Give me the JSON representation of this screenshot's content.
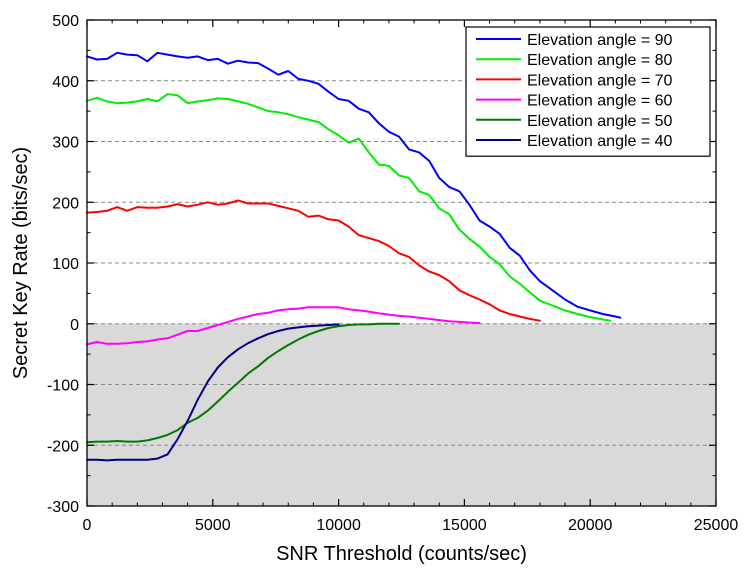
{
  "chart_data": {
    "type": "line",
    "title": "",
    "xlabel": "SNR Threshold (counts/sec)",
    "ylabel": "Secret Key Rate (bits/sec)",
    "xlim": [
      0,
      25000
    ],
    "ylim": [
      -300,
      500
    ],
    "xticks": [
      0,
      5000,
      10000,
      15000,
      20000,
      25000
    ],
    "yticks": [
      -300,
      -200,
      -100,
      0,
      100,
      200,
      300,
      400,
      500
    ],
    "xtick_labels": [
      "0",
      "5000",
      "10000",
      "15000",
      "20000",
      "25000"
    ],
    "ytick_labels": [
      "-300",
      "-200",
      "-100",
      "0",
      "100",
      "200",
      "300",
      "400",
      "500"
    ],
    "grid": "horizontal dashed",
    "negative_region_shaded": true,
    "shade_color": "#d9d9d9",
    "legend_position": "top-right",
    "series": [
      {
        "name": "Elevation angle = 90",
        "color": "#0000ff",
        "x": [
          0,
          400,
          800,
          1200,
          1600,
          2000,
          2400,
          2800,
          3200,
          3600,
          4000,
          4400,
          4800,
          5200,
          5600,
          6000,
          6400,
          6800,
          7200,
          7600,
          8000,
          8400,
          8800,
          9200,
          9600,
          10000,
          10400,
          10800,
          11200,
          11600,
          12000,
          12400,
          12800,
          13200,
          13600,
          14000,
          14400,
          14800,
          15200,
          15600,
          16000,
          16400,
          16800,
          17200,
          17600,
          18000,
          18500,
          19000,
          19500,
          20000,
          20500,
          21000,
          21200
        ],
        "y": [
          440,
          435,
          436,
          446,
          443,
          442,
          432,
          446,
          443,
          440,
          438,
          440,
          434,
          436,
          428,
          433,
          430,
          429,
          420,
          410,
          416,
          403,
          400,
          395,
          382,
          370,
          367,
          354,
          348,
          330,
          316,
          308,
          287,
          282,
          268,
          240,
          225,
          218,
          196,
          170,
          160,
          148,
          125,
          112,
          88,
          70,
          55,
          40,
          28,
          22,
          16,
          12,
          10
        ]
      },
      {
        "name": "Elevation angle = 80",
        "color": "#00ee00",
        "x": [
          0,
          400,
          800,
          1200,
          1600,
          2000,
          2400,
          2800,
          3200,
          3600,
          4000,
          4400,
          4800,
          5200,
          5600,
          6000,
          6400,
          6800,
          7200,
          7600,
          8000,
          8400,
          8800,
          9200,
          9600,
          10000,
          10400,
          10800,
          11200,
          11600,
          12000,
          12400,
          12800,
          13200,
          13600,
          14000,
          14400,
          14800,
          15200,
          15600,
          16000,
          16400,
          16800,
          17200,
          17600,
          18000,
          18500,
          19000,
          19500,
          20000,
          20500,
          20800
        ],
        "y": [
          367,
          372,
          366,
          363,
          364,
          366,
          370,
          366,
          378,
          376,
          363,
          366,
          368,
          371,
          370,
          366,
          362,
          356,
          350,
          348,
          345,
          340,
          336,
          332,
          320,
          310,
          298,
          305,
          282,
          262,
          260,
          244,
          240,
          218,
          212,
          190,
          180,
          155,
          140,
          127,
          110,
          98,
          78,
          66,
          52,
          38,
          30,
          22,
          16,
          11,
          7,
          5
        ]
      },
      {
        "name": "Elevation angle = 70",
        "color": "#ff0000",
        "x": [
          0,
          400,
          800,
          1200,
          1600,
          2000,
          2400,
          2800,
          3200,
          3600,
          4000,
          4400,
          4800,
          5200,
          5600,
          6000,
          6400,
          6800,
          7200,
          7600,
          8000,
          8400,
          8800,
          9200,
          9600,
          10000,
          10400,
          10800,
          11200,
          11600,
          12000,
          12400,
          12800,
          13200,
          13600,
          14000,
          14400,
          14800,
          15200,
          15600,
          16000,
          16400,
          16800,
          17200,
          17600,
          18000
        ],
        "y": [
          183,
          184,
          186,
          192,
          186,
          192,
          191,
          191,
          193,
          197,
          193,
          196,
          200,
          196,
          198,
          203,
          198,
          198,
          198,
          194,
          190,
          186,
          176,
          178,
          172,
          170,
          160,
          146,
          141,
          136,
          128,
          116,
          110,
          96,
          86,
          80,
          70,
          55,
          47,
          40,
          32,
          22,
          16,
          12,
          8,
          5
        ]
      },
      {
        "name": "Elevation angle = 60",
        "color": "#ff00ff",
        "x": [
          0,
          400,
          800,
          1200,
          1600,
          2000,
          2400,
          2800,
          3200,
          3600,
          4000,
          4400,
          4800,
          5200,
          5600,
          6000,
          6400,
          6800,
          7200,
          7600,
          8000,
          8400,
          8800,
          9200,
          9600,
          10000,
          10400,
          10800,
          11200,
          11600,
          12000,
          12400,
          12800,
          13200,
          13600,
          14000,
          14400,
          14800,
          15200,
          15600
        ],
        "y": [
          -34,
          -30,
          -33,
          -33,
          -32,
          -30,
          -29,
          -26,
          -24,
          -18,
          -12,
          -12,
          -7,
          -2,
          3,
          8,
          12,
          16,
          18,
          22,
          24,
          25,
          27,
          27,
          27,
          27,
          24,
          22,
          20,
          17,
          15,
          13,
          12,
          10,
          8,
          6,
          4,
          3,
          2,
          1
        ]
      },
      {
        "name": "Elevation angle = 50",
        "color": "#007a00",
        "x": [
          0,
          400,
          800,
          1200,
          1600,
          2000,
          2400,
          2800,
          3200,
          3600,
          4000,
          4400,
          4800,
          5200,
          5600,
          6000,
          6400,
          6800,
          7200,
          7600,
          8000,
          8400,
          8800,
          9200,
          9600,
          10000,
          10400,
          10800,
          11200,
          11600,
          12000,
          12400
        ],
        "y": [
          -195,
          -194,
          -194,
          -193,
          -194,
          -194,
          -192,
          -188,
          -183,
          -175,
          -163,
          -155,
          -143,
          -128,
          -112,
          -97,
          -82,
          -70,
          -56,
          -45,
          -35,
          -26,
          -18,
          -12,
          -7,
          -4,
          -2,
          -1,
          -1,
          0,
          0,
          0
        ]
      },
      {
        "name": "Elevation angle = 40",
        "color": "#000080",
        "x": [
          0,
          400,
          800,
          1200,
          1600,
          2000,
          2400,
          2800,
          3200,
          3600,
          4000,
          4400,
          4800,
          5200,
          5600,
          6000,
          6400,
          6800,
          7200,
          7600,
          8000,
          8400,
          8800,
          9200,
          9600,
          10000
        ],
        "y": [
          -224,
          -224,
          -225,
          -224,
          -224,
          -224,
          -224,
          -222,
          -215,
          -190,
          -160,
          -125,
          -95,
          -72,
          -55,
          -42,
          -32,
          -24,
          -17,
          -12,
          -8,
          -6,
          -4,
          -3,
          -2,
          -1
        ]
      }
    ]
  }
}
